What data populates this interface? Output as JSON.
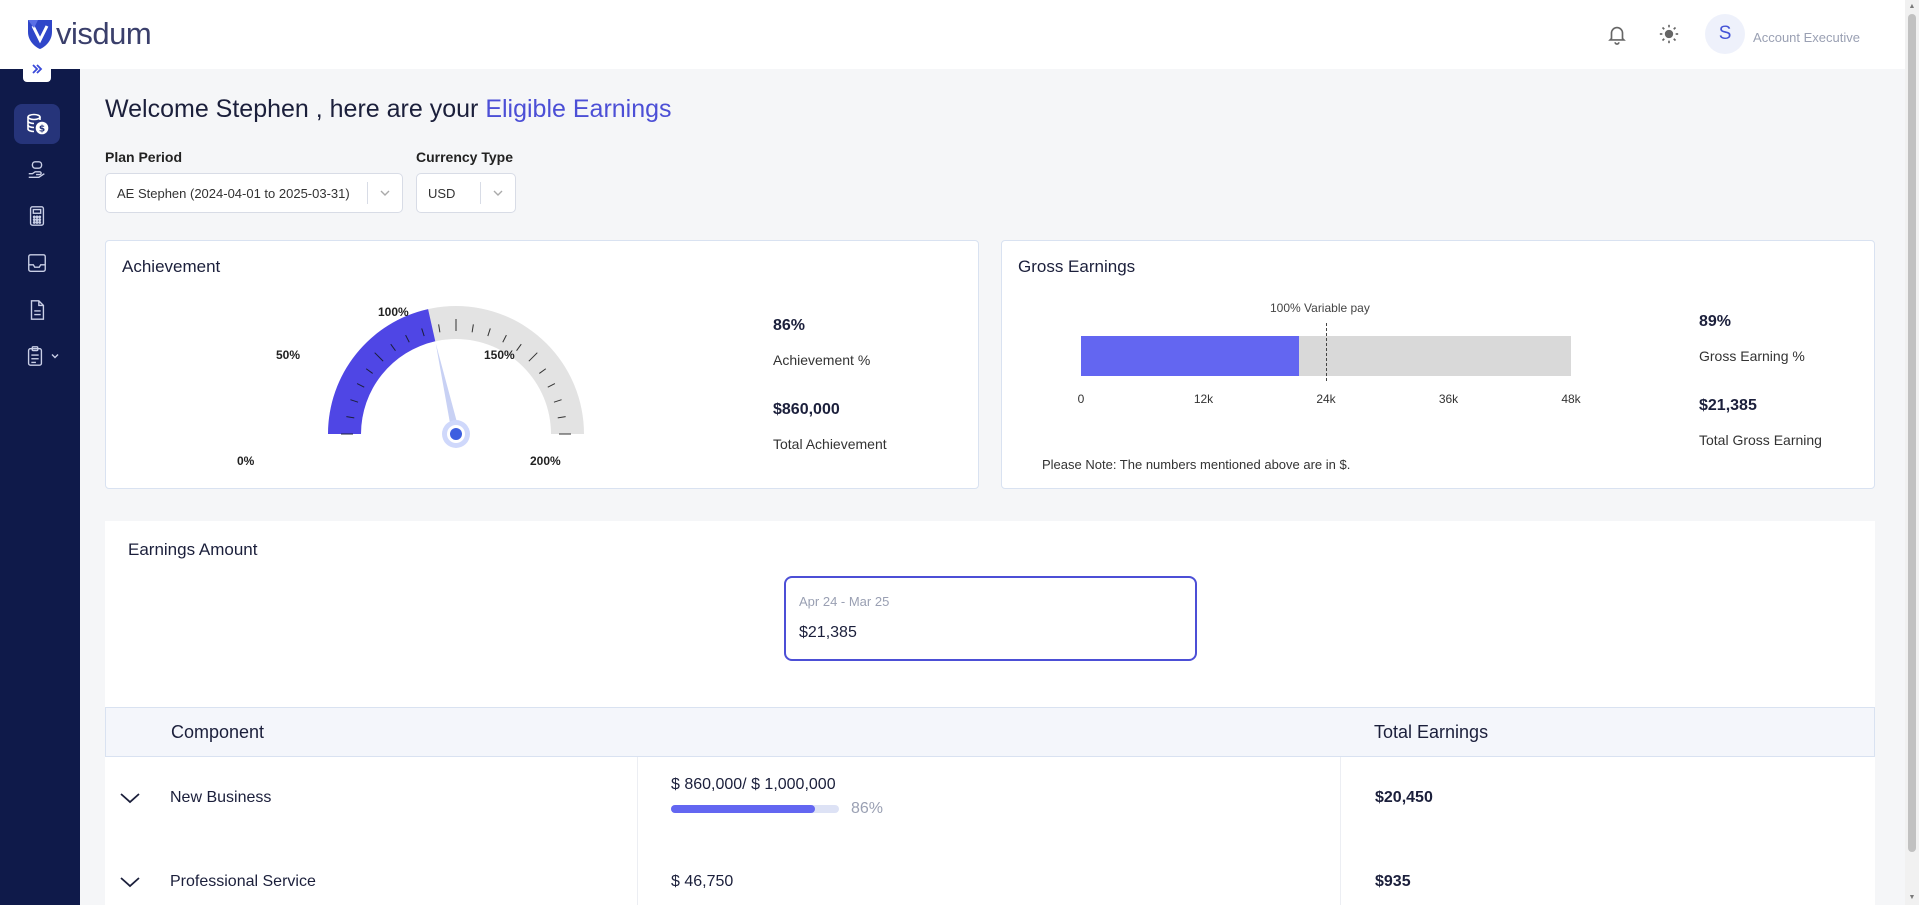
{
  "app": {
    "logo_text": "visdum"
  },
  "header": {
    "user_initial": "S",
    "user_role": "Account Executive"
  },
  "sidebar": {
    "items": [
      {
        "icon": "coins-dollar-icon",
        "active": true
      },
      {
        "icon": "hand-money-icon",
        "active": false
      },
      {
        "icon": "calculator-icon",
        "active": false
      },
      {
        "icon": "inbox-tray-icon",
        "active": false
      },
      {
        "icon": "document-icon",
        "active": false
      },
      {
        "icon": "clipboard-icon",
        "active": false
      }
    ]
  },
  "welcome": {
    "prefix": "Welcome Stephen , here are your ",
    "highlight": "Eligible Earnings"
  },
  "filters": {
    "plan_period_label": "Plan Period",
    "plan_period_value": "AE Stephen (2024-04-01 to 2025-03-31)",
    "currency_label": "Currency Type",
    "currency_value": "USD"
  },
  "achievement": {
    "title": "Achievement",
    "percent": "86%",
    "percent_label": "Achievement %",
    "total": "$860,000",
    "total_label": "Total Achievement",
    "gauge": {
      "min": 0,
      "max": 200,
      "value": 86,
      "labels": [
        "0%",
        "50%",
        "100%",
        "150%",
        "200%"
      ],
      "fill_color": "#4f46e5",
      "track_color": "#e3e3e3"
    }
  },
  "gross": {
    "title": "Gross Earnings",
    "percent": "89%",
    "percent_label": "Gross Earning %",
    "total": "$21,385",
    "total_label": "Total Gross Earning",
    "marker_label": "100% Variable pay",
    "note": "Please Note: The numbers mentioned above are in $.",
    "bar": {
      "value": 21385,
      "max": 48000,
      "marker": 24000,
      "ticks": [
        "0",
        "12k",
        "24k",
        "36k",
        "48k"
      ],
      "tick_values": [
        0,
        12000,
        24000,
        36000,
        48000
      ],
      "fill_color": "#6366f1",
      "track_color": "#d9d9d9"
    }
  },
  "earnings": {
    "title": "Earnings Amount",
    "period": {
      "label": "Apr 24 - Mar 25",
      "value": "$21,385"
    },
    "columns": {
      "component": "Component",
      "total": "Total Earnings"
    },
    "rows": [
      {
        "name": "New Business",
        "amount": "$ 860,000/ $ 1,000,000",
        "progress": 86,
        "progress_label": "86%",
        "total": "$20,450"
      },
      {
        "name": "Professional Service",
        "amount": "$ 46,750",
        "total": "$935"
      }
    ]
  }
}
